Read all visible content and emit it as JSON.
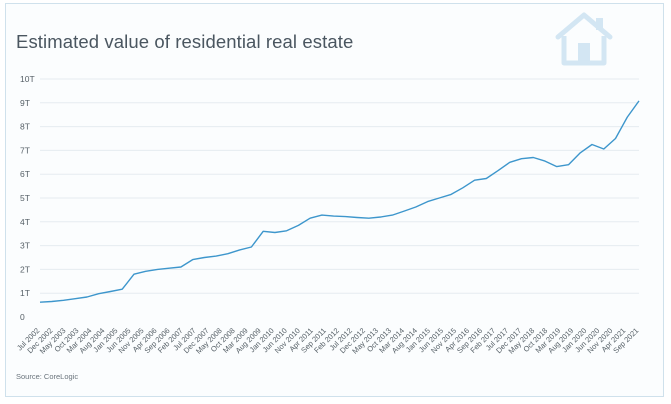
{
  "chart_data": {
    "type": "line",
    "title": "Estimated value of residential real estate",
    "source": "Source: CoreLogic",
    "logo_icon": "house-icon",
    "colors": {
      "line": "#3d96cc",
      "grid": "#e6ecf0",
      "logo": "#d3e6f3",
      "text": "#4a5660"
    },
    "y_ticks": [
      "0",
      "1T",
      "2T",
      "3T",
      "4T",
      "5T",
      "6T",
      "7T",
      "8T",
      "9T",
      "10T"
    ],
    "ylim": [
      0,
      10
    ],
    "grid": true,
    "x_tick_labels": [
      "Jul 2002",
      "Dec 2002",
      "May 2003",
      "Oct 2003",
      "Mar 2004",
      "Aug 2004",
      "Jan 2005",
      "Jun 2005",
      "Nov 2005",
      "Apr 2006",
      "Sep 2006",
      "Feb 2007",
      "Jul 2007",
      "Dec 2007",
      "May 2008",
      "Oct 2008",
      "Mar 2009",
      "Aug 2009",
      "Jan 2010",
      "Jun 2010",
      "Nov 2010",
      "Apr 2011",
      "Sep 2011",
      "Feb 2012",
      "Jul 2012",
      "Dec 2012",
      "May 2013",
      "Oct 2013",
      "Mar 2014",
      "Aug 2014",
      "Jan 2015",
      "Jun 2015",
      "Nov 2015",
      "Apr 2016",
      "Sep 2016",
      "Feb 2017",
      "Jul 2017",
      "Dec 2017",
      "May 2018",
      "Oct 2018",
      "Mar 2019",
      "Aug 2019",
      "Jan 2020",
      "Jun 2020",
      "Nov 2020",
      "Apr 2021",
      "Sep 2021"
    ],
    "series": [
      {
        "values": [
          0.62,
          0.65,
          0.7,
          0.77,
          0.84,
          0.98,
          1.07,
          1.17,
          1.8,
          1.92,
          2.0,
          2.05,
          2.1,
          2.41,
          2.5,
          2.56,
          2.66,
          2.82,
          2.94,
          3.6,
          3.55,
          3.62,
          3.85,
          4.15,
          4.28,
          4.24,
          4.22,
          4.18,
          4.15,
          4.2,
          4.28,
          4.45,
          4.62,
          4.85,
          5.0,
          5.15,
          5.43,
          5.75,
          5.82,
          6.15,
          6.5,
          6.65,
          6.7,
          6.55,
          6.32,
          6.4,
          6.9,
          7.25,
          7.06,
          7.5,
          8.4,
          9.08
        ]
      }
    ]
  }
}
